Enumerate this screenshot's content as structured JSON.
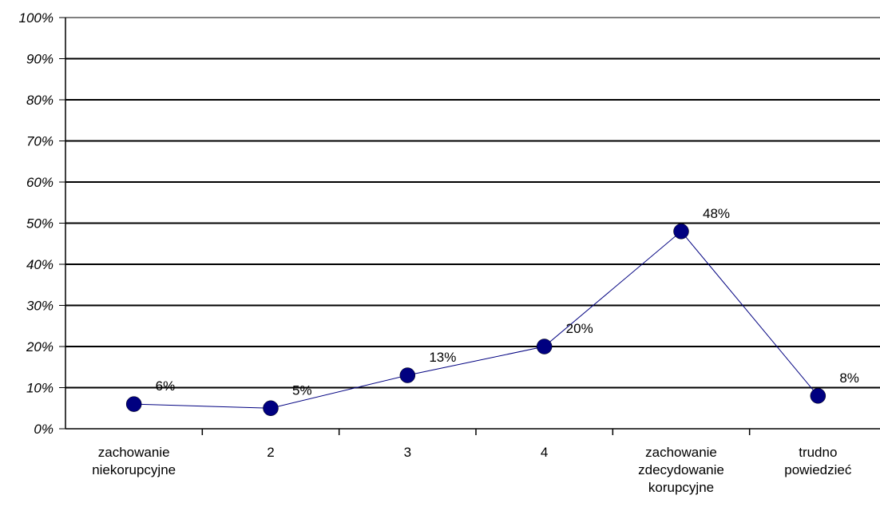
{
  "chart_data": {
    "type": "line",
    "categories": [
      [
        "zachowanie",
        "niekorupcyjne"
      ],
      [
        "2"
      ],
      [
        "3"
      ],
      [
        "4"
      ],
      [
        "zachowanie",
        "zdecydowanie",
        "korupcyjne"
      ],
      [
        "trudno",
        "powiedzieć"
      ]
    ],
    "values": [
      6,
      5,
      13,
      20,
      48,
      8
    ],
    "data_labels": [
      "6%",
      "5%",
      "13%",
      "20%",
      "48%",
      "8%"
    ],
    "ylim": [
      0,
      100
    ],
    "yticks": [
      0,
      10,
      20,
      30,
      40,
      50,
      60,
      70,
      80,
      90,
      100
    ],
    "ytick_labels": [
      "0%",
      "10%",
      "20%",
      "30%",
      "40%",
      "50%",
      "60%",
      "70%",
      "80%",
      "90%",
      "100%"
    ],
    "title": "",
    "xlabel": "",
    "ylabel": "",
    "grid": true,
    "legend": "none",
    "colors": {
      "line": "#000080",
      "marker": "#000080",
      "grid": "#000000",
      "top_grid": "#808080"
    }
  }
}
